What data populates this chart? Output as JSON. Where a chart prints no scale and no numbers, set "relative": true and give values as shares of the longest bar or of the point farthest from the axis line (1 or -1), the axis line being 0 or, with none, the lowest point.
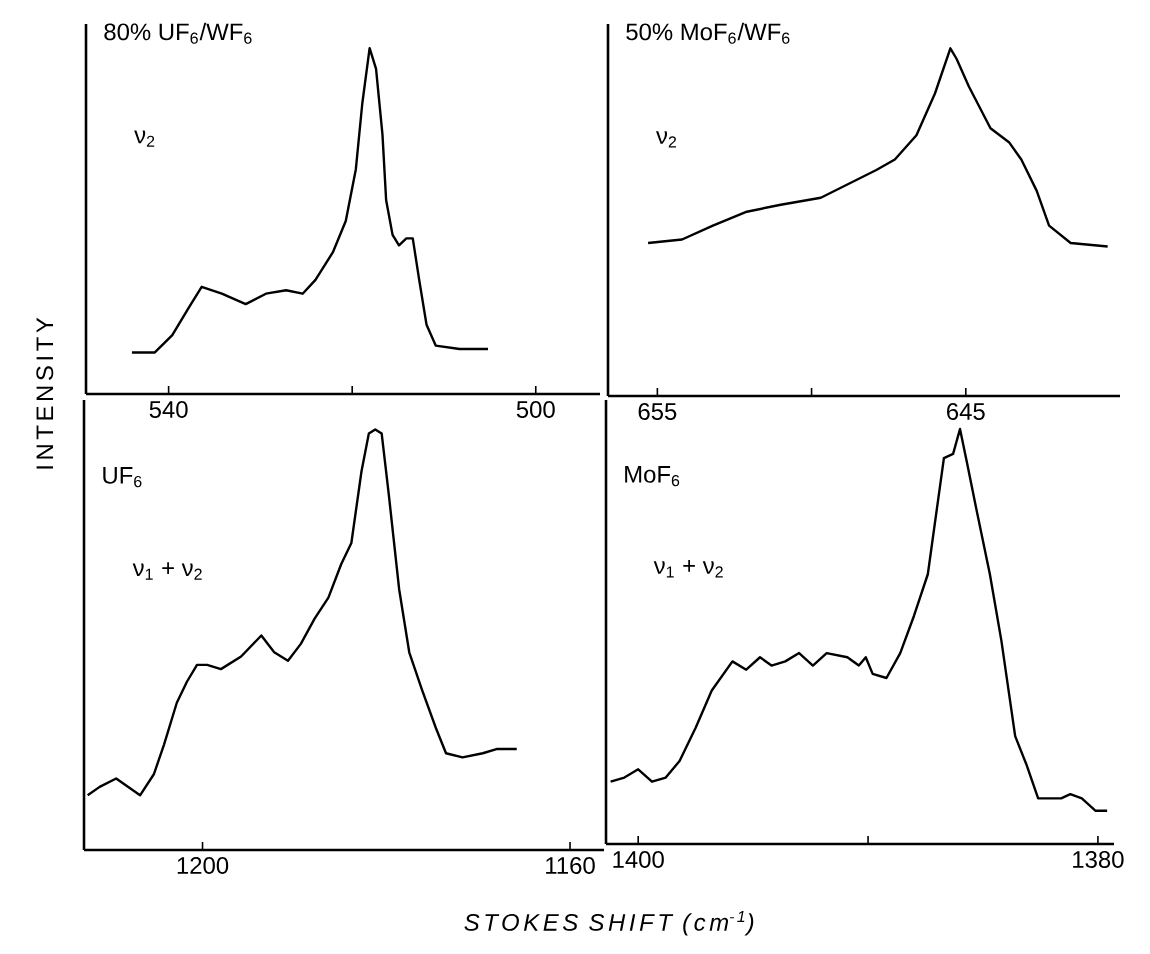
{
  "chart_data": [
    {
      "type": "line",
      "title": "80% UF$_{6}$/WF$_{6}$",
      "annotations": [
        "ν$_{2}$"
      ],
      "ylabel": "INTENSITY",
      "relative": true,
      "tick_labels": "x",
      "xlim": [
        549,
        493
      ],
      "xticks": [
        540,
        {
          "value": 520,
          "label": null
        },
        500
      ],
      "series": [
        {
          "color": "#000000",
          "x": [
            544.0,
            541.5,
            539.6,
            537.8,
            536.4,
            534.2,
            531.6,
            529.4,
            527.2,
            525.4,
            524.0,
            522.1,
            520.7,
            519.6,
            518.9,
            518.1,
            517.4,
            516.7,
            516.3,
            515.6,
            514.9,
            514.1,
            513.4,
            512.7,
            511.9,
            510.9,
            508.3,
            505.2
          ],
          "values": [
            0.12,
            0.12,
            0.17,
            0.25,
            0.31,
            0.29,
            0.26,
            0.29,
            0.3,
            0.29,
            0.33,
            0.41,
            0.5,
            0.65,
            0.84,
            1,
            0.94,
            0.75,
            0.56,
            0.46,
            0.43,
            0.45,
            0.45,
            0.33,
            0.2,
            0.14,
            0.13,
            0.13
          ]
        }
      ]
    },
    {
      "type": "line",
      "title": "50% MoF$_{6}$/WF$_{6}$",
      "annotations": [
        "ν$_{2}$"
      ],
      "relative": true,
      "tick_labels": "x",
      "xlim": [
        656.6,
        640
      ],
      "xticks": [
        655,
        {
          "value": 650,
          "label": null
        },
        645
      ],
      "series": [
        {
          "color": "#000000",
          "x": [
            655.3,
            654.2,
            653.2,
            652.1,
            651.0,
            649.7,
            648.8,
            647.9,
            647.3,
            646.6,
            646.0,
            645.5,
            645.3,
            644.9,
            644.2,
            643.6,
            643.2,
            642.7,
            642.3,
            641.6,
            640.4
          ],
          "values": [
            0.44,
            0.45,
            0.49,
            0.53,
            0.55,
            0.57,
            0.61,
            0.65,
            0.68,
            0.75,
            0.87,
            1,
            0.97,
            0.89,
            0.77,
            0.73,
            0.68,
            0.59,
            0.49,
            0.44,
            0.43
          ]
        }
      ]
    },
    {
      "type": "line",
      "title": "UF$_{6}$",
      "annotations": [
        "ν$_{1}$ + ν$_{2}$"
      ],
      "xlabel": "STOKES SHIFT (cm$^{-1}$)",
      "relative": true,
      "tick_labels": "x",
      "xlim": [
        1212.9,
        1156.3
      ],
      "xticks": [
        1200,
        1160
      ],
      "series": [
        {
          "color": "#000000",
          "x": [
            1212.5,
            1211.2,
            1209.4,
            1206.8,
            1205.3,
            1204.2,
            1202.8,
            1201.7,
            1200.6,
            1199.5,
            1198.0,
            1195.8,
            1193.6,
            1192.2,
            1190.7,
            1189.3,
            1187.8,
            1186.3,
            1184.9,
            1183.8,
            1182.7,
            1181.9,
            1181.2,
            1180.5,
            1179.7,
            1178.6,
            1177.5,
            1176.1,
            1174.6,
            1173.5,
            1171.7,
            1169.5,
            1168.0,
            1165.8
          ],
          "values": [
            0.13,
            0.15,
            0.17,
            0.13,
            0.18,
            0.25,
            0.35,
            0.4,
            0.44,
            0.44,
            0.43,
            0.46,
            0.51,
            0.47,
            0.45,
            0.49,
            0.55,
            0.6,
            0.68,
            0.73,
            0.9,
            0.99,
            1,
            0.99,
            0.84,
            0.62,
            0.47,
            0.38,
            0.29,
            0.23,
            0.22,
            0.23,
            0.24,
            0.24
          ]
        }
      ]
    },
    {
      "type": "line",
      "title": "MoF$_{6}$",
      "annotations": [
        "ν$_{1}$ + ν$_{2}$"
      ],
      "relative": true,
      "tick_labels": "x",
      "xlim": [
        1401.4,
        1379.3
      ],
      "xticks": [
        1400,
        {
          "value": 1390,
          "label": null
        },
        1380
      ],
      "series": [
        {
          "color": "#000000",
          "x": [
            1401.2,
            1400.6,
            1400.0,
            1399.4,
            1398.8,
            1398.2,
            1397.5,
            1396.8,
            1395.9,
            1395.3,
            1394.7,
            1394.2,
            1393.6,
            1393.0,
            1392.4,
            1391.8,
            1390.9,
            1390.4,
            1390.1,
            1389.8,
            1389.2,
            1388.6,
            1388.0,
            1387.4,
            1387.0,
            1386.7,
            1386.3,
            1386.0,
            1385.7,
            1385.3,
            1384.7,
            1384.2,
            1383.6,
            1383.1,
            1382.6,
            1381.6,
            1381.2,
            1380.7,
            1380.1,
            1379.6
          ],
          "values": [
            0.15,
            0.16,
            0.18,
            0.15,
            0.16,
            0.2,
            0.28,
            0.37,
            0.44,
            0.42,
            0.45,
            0.43,
            0.44,
            0.46,
            0.43,
            0.46,
            0.45,
            0.43,
            0.45,
            0.41,
            0.4,
            0.46,
            0.55,
            0.65,
            0.81,
            0.93,
            0.94,
            1,
            0.92,
            0.81,
            0.65,
            0.49,
            0.26,
            0.19,
            0.11,
            0.11,
            0.12,
            0.11,
            0.08,
            0.08
          ]
        }
      ]
    }
  ]
}
